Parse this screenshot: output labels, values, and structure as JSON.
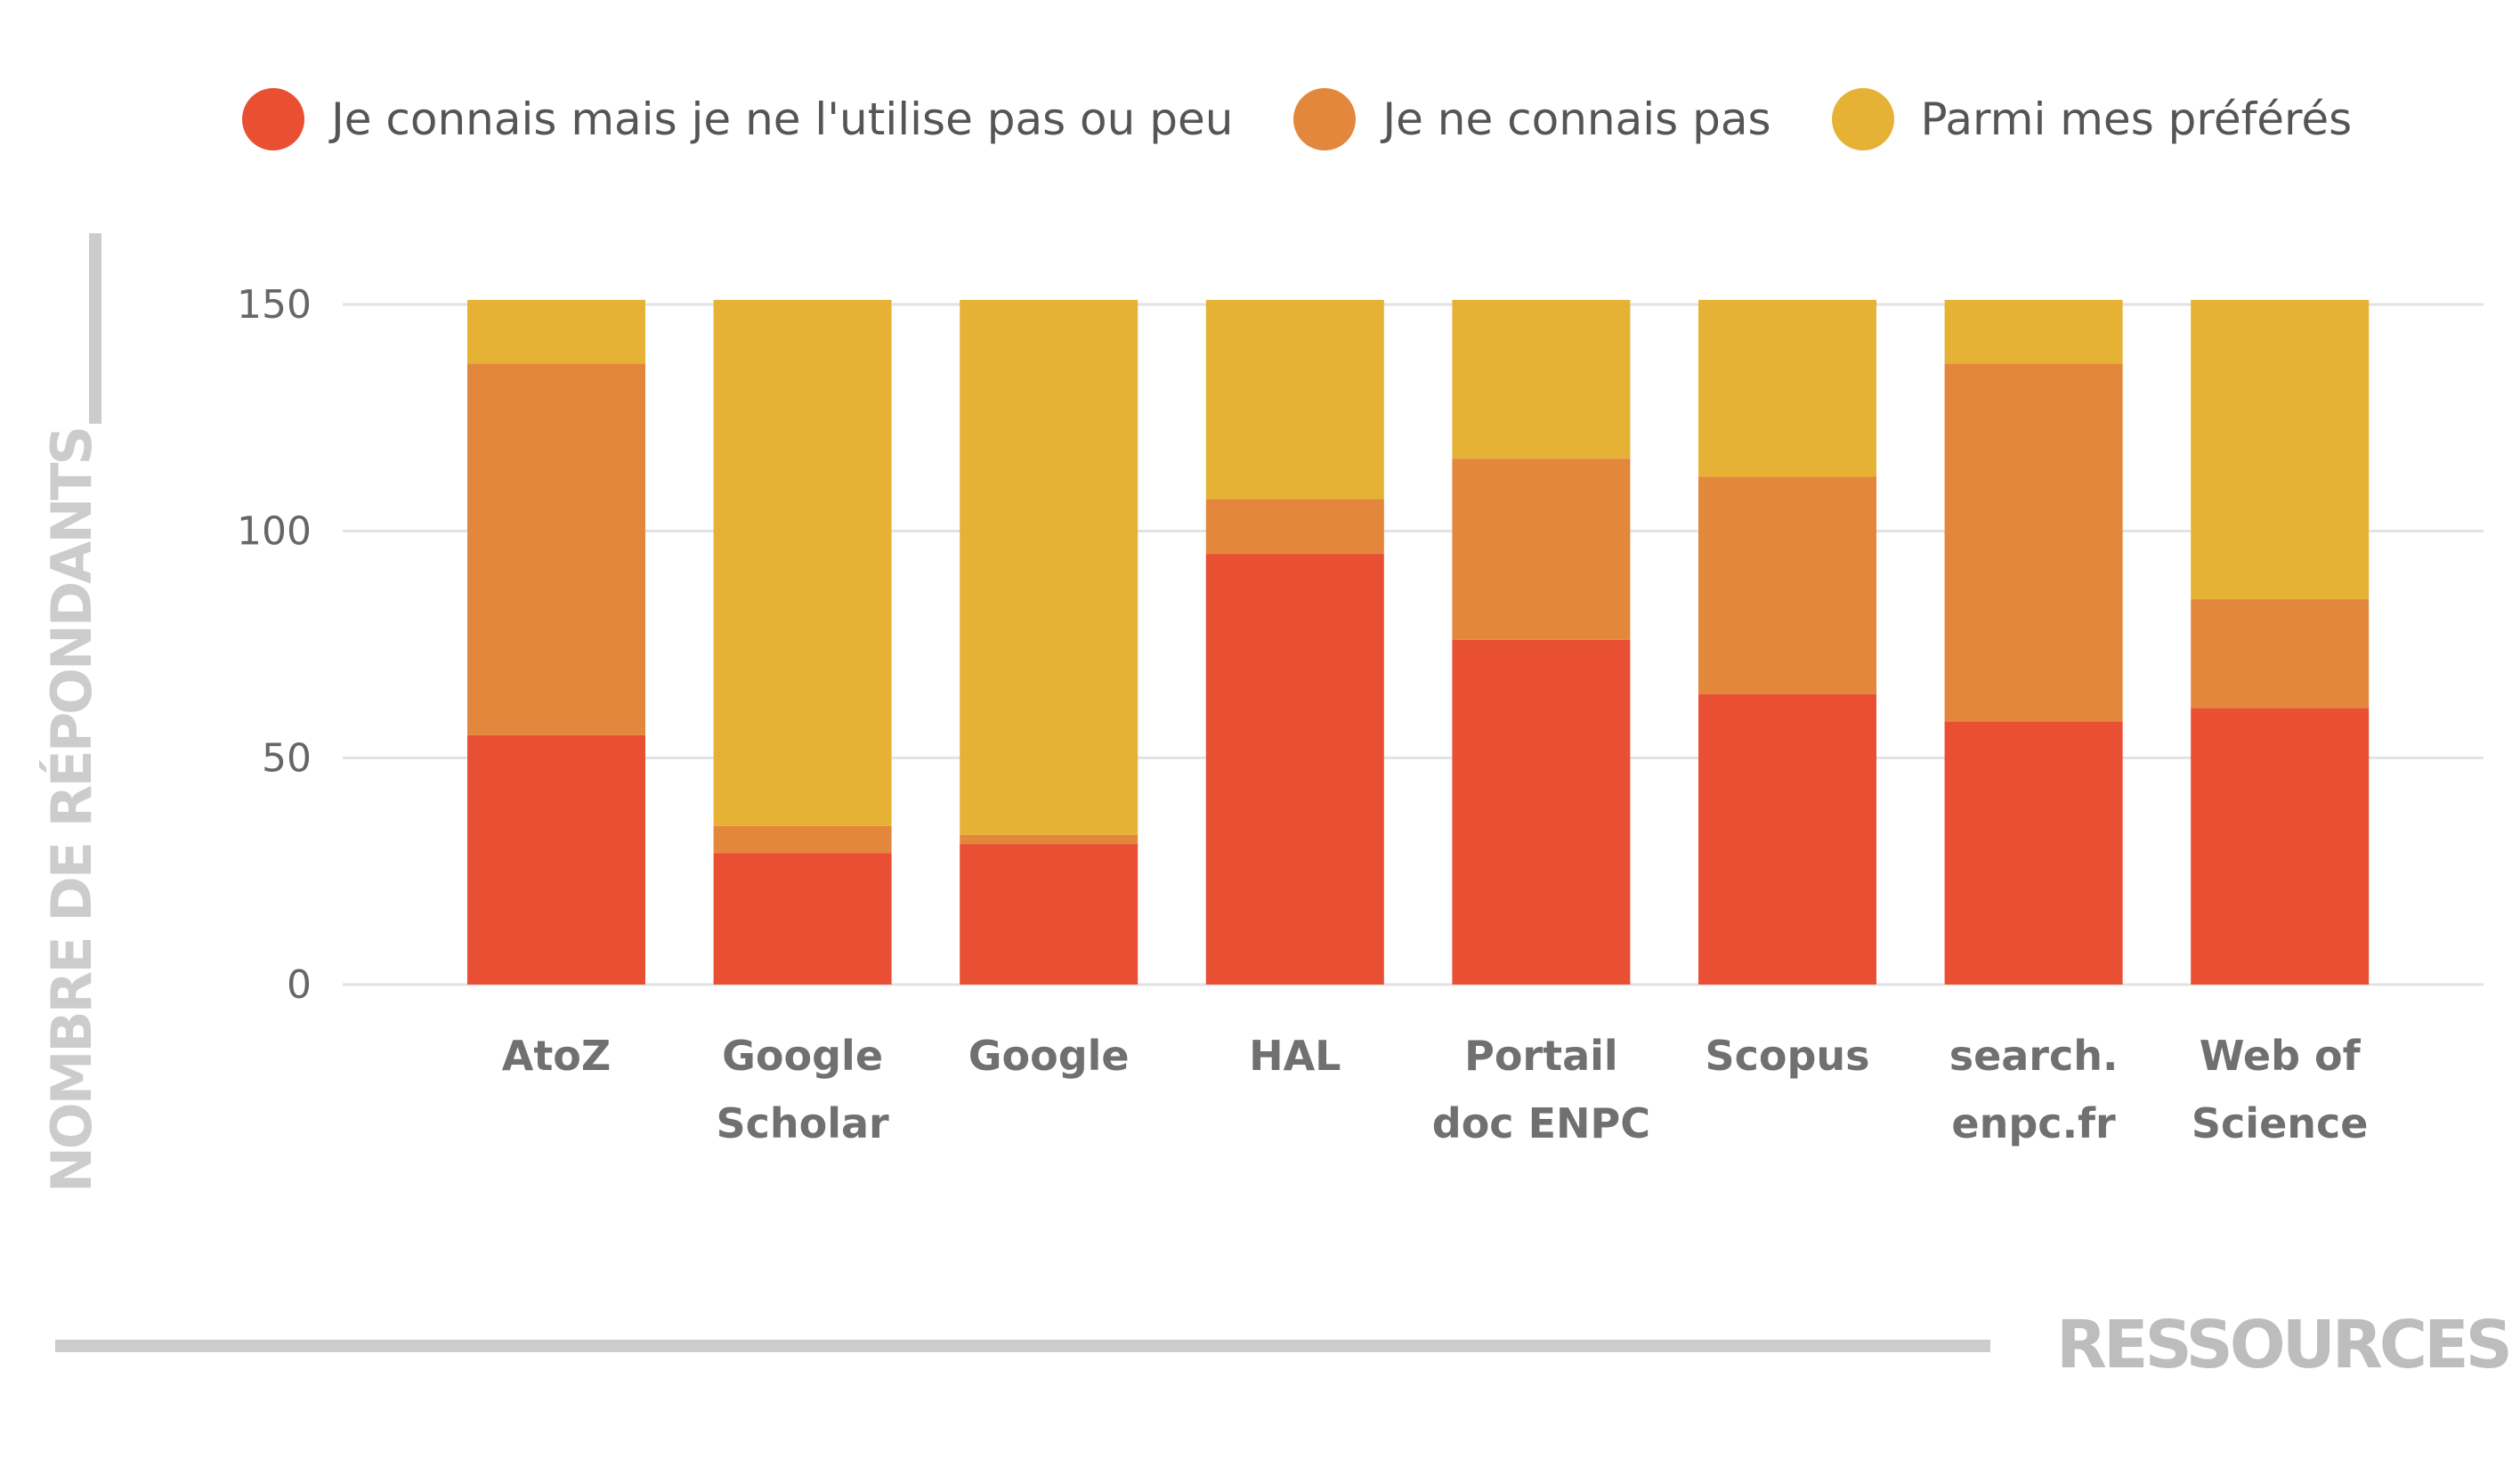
{
  "chart_data": {
    "type": "bar",
    "stacked": true,
    "categories": [
      "AtoZ",
      "Google Scholar",
      "Google",
      "HAL",
      "Portail doc ENPC",
      "Scopus",
      "search. enpc.fr",
      "Web of Science"
    ],
    "category_lines": [
      [
        "AtoZ"
      ],
      [
        "Google",
        "Scholar"
      ],
      [
        "Google"
      ],
      [
        "HAL"
      ],
      [
        "Portail",
        "doc ENPC"
      ],
      [
        "Scopus"
      ],
      [
        "search.",
        "enpc.fr"
      ],
      [
        "Web of",
        "Science"
      ]
    ],
    "series": [
      {
        "name": "Je connais mais je ne l'utilise pas ou peu",
        "color": "#e84f33",
        "values": [
          55,
          29,
          31,
          95,
          76,
          64,
          58,
          61
        ]
      },
      {
        "name": "Je ne connais pas",
        "color": "#e3873d",
        "values": [
          82,
          6,
          2,
          12,
          40,
          48,
          79,
          24
        ]
      },
      {
        "name": "Parmi mes préférés",
        "color": "#e6b236",
        "values": [
          14,
          116,
          118,
          44,
          35,
          39,
          14,
          66
        ]
      }
    ],
    "ylim": [
      0,
      150
    ],
    "yticks": [
      0,
      50,
      100,
      150
    ],
    "ylabel": "NOMBRE DE RÉPONDANTS",
    "xlabel": "RESSOURCES",
    "grid": true,
    "legend_position": "top"
  }
}
